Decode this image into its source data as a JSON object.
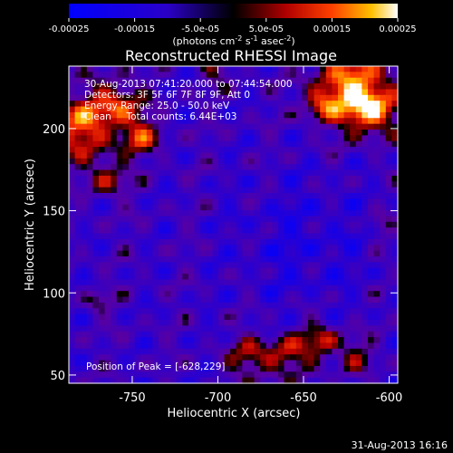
{
  "chart_data": {
    "type": "heatmap",
    "title": "Reconstructed RHESSI Image",
    "xlabel": "Heliocentric X (arcsec)",
    "ylabel": "Heliocentric Y (arcsec)",
    "xlim": [
      -787,
      -595
    ],
    "ylim": [
      45,
      238
    ],
    "xticks": [
      -750,
      -700,
      -650,
      -600
    ],
    "yticks": [
      50,
      100,
      150,
      200
    ],
    "colorbar": {
      "min": -0.00025,
      "max": 0.00025,
      "tick_values": [
        -0.00025,
        -0.00015,
        -5e-05,
        5e-05,
        0.00015,
        0.00025
      ],
      "tick_labels": [
        "-0.00025",
        "-0.00015",
        "-5.0e-05",
        "5.0e-05",
        "0.00015",
        "0.00025"
      ],
      "units_text": "(photons cm",
      "units_exp1": "-2",
      "units_mid": " s",
      "units_exp2": "-1",
      "units_end": " asec",
      "units_exp3": "-2",
      "units_close": ")"
    },
    "annotations": {
      "time": "30-Aug-2013 07:41:20.000 to 07:44:54.000",
      "detectors": "Detectors: 3F 5F 6F 7F 8F 9F, Att 0",
      "energy": "Energy Range: 25.0 - 50.0 keV",
      "clean": "Clean     Total counts: 6.44E+03",
      "peak": "Position of Peak = [-628,229]"
    },
    "peak_position": [
      -628,
      229
    ]
  },
  "footer": {
    "date": "31-Aug-2013 16:16"
  }
}
